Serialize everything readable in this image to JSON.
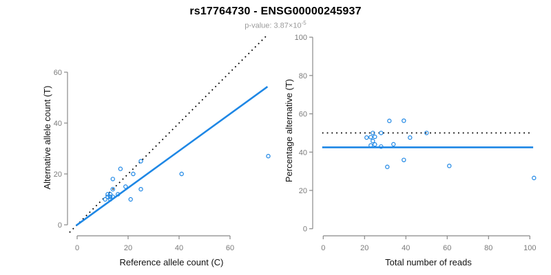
{
  "header": {
    "title": "rs17764730 - ENSG00000245937",
    "subtitle_text": "p-value: 3.87×10",
    "subtitle_exponent": "-5"
  },
  "colors": {
    "accent_blue": "#1e87e5",
    "line_black": "#000000",
    "axis_gray": "#888888",
    "tick_label_gray": "#7a7a7a",
    "subtitle_gray": "#9a9a9a"
  },
  "chart_data": [
    {
      "type": "scatter",
      "panel": "left",
      "title": "",
      "xlabel": "Reference allele count (C)",
      "ylabel": "Alternative allele count (T)",
      "xticks": [
        0,
        20,
        40,
        60
      ],
      "yticks": [
        0,
        20,
        40,
        60
      ],
      "xlim": [
        -4,
        78
      ],
      "ylim": [
        -3,
        75
      ],
      "grid": false,
      "legend": "none",
      "points": [
        [
          11,
          10
        ],
        [
          12,
          11
        ],
        [
          12,
          12
        ],
        [
          13,
          10
        ],
        [
          13,
          11
        ],
        [
          13,
          12
        ],
        [
          14,
          11
        ],
        [
          14,
          14
        ],
        [
          14,
          18
        ],
        [
          16,
          12
        ],
        [
          17,
          22
        ],
        [
          19,
          15
        ],
        [
          21,
          10
        ],
        [
          22,
          20
        ],
        [
          25,
          14
        ],
        [
          25,
          25
        ],
        [
          41,
          20
        ],
        [
          75,
          27
        ]
      ],
      "lines": [
        {
          "name": "identity-line",
          "style": "dotted",
          "color": "#000000",
          "x1": -3,
          "y1": -3,
          "x2": 74.5,
          "y2": 74.5
        },
        {
          "name": "regression-line",
          "style": "solid",
          "color": "#1e87e5",
          "x1": -0.4,
          "y1": -0.3,
          "x2": 74.7,
          "y2": 54.3
        }
      ]
    },
    {
      "type": "scatter",
      "panel": "right",
      "title": "",
      "xlabel": "Total number of reads",
      "ylabel": "Percentage alternative (T)",
      "xticks": [
        0,
        20,
        40,
        60,
        80,
        100
      ],
      "yticks": [
        0,
        20,
        40,
        60,
        80,
        100
      ],
      "xlim": [
        -5,
        107
      ],
      "ylim": [
        -4,
        104
      ],
      "grid": false,
      "legend": "none",
      "points": [
        [
          21,
          47.6
        ],
        [
          23,
          47.8
        ],
        [
          24,
          50
        ],
        [
          23,
          43.5
        ],
        [
          24,
          45.8
        ],
        [
          25,
          48
        ],
        [
          25,
          44
        ],
        [
          28,
          50
        ],
        [
          32,
          56.3
        ],
        [
          28,
          42.9
        ],
        [
          39,
          56.4
        ],
        [
          34,
          44.1
        ],
        [
          31,
          32.3
        ],
        [
          42,
          47.6
        ],
        [
          39,
          35.9
        ],
        [
          50,
          50
        ],
        [
          61,
          32.8
        ],
        [
          102,
          26.5
        ]
      ],
      "lines": [
        {
          "name": "expected-50pct-line",
          "style": "dotted",
          "color": "#000000",
          "x1": -0.5,
          "y1": 50,
          "x2": 101.5,
          "y2": 50
        },
        {
          "name": "mean-percentage-line",
          "style": "solid",
          "color": "#1e87e5",
          "x1": -0.5,
          "y1": 42.5,
          "x2": 101.6,
          "y2": 42.5
        }
      ]
    }
  ]
}
